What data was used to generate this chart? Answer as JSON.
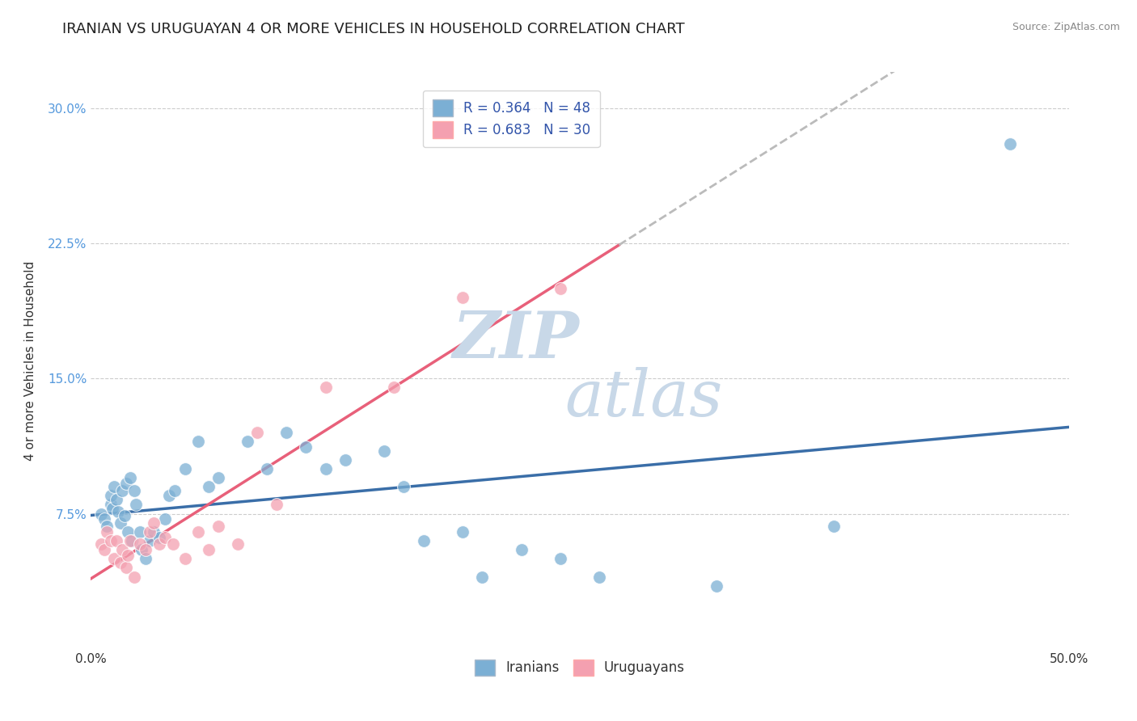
{
  "title": "IRANIAN VS URUGUAYAN 4 OR MORE VEHICLES IN HOUSEHOLD CORRELATION CHART",
  "source_text": "Source: ZipAtlas.com",
  "ylabel": "4 or more Vehicles in Household",
  "xlim": [
    0.0,
    0.5
  ],
  "ylim": [
    0.0,
    0.32
  ],
  "xtick_positions": [
    0.0,
    0.5
  ],
  "xtick_labels": [
    "0.0%",
    "50.0%"
  ],
  "ytick_positions": [
    0.075,
    0.15,
    0.225,
    0.3
  ],
  "ytick_labels": [
    "7.5%",
    "15.0%",
    "22.5%",
    "30.0%"
  ],
  "r_iranian": 0.364,
  "n_iranian": 48,
  "r_uruguayan": 0.683,
  "n_uruguayan": 30,
  "color_iranian": "#7BAFD4",
  "color_uruguayan": "#F4A0B0",
  "trendline_color_iranian": "#3A6EA8",
  "trendline_color_uruguayan": "#E8607A",
  "trendline_dashed_color": "#BBBBBB",
  "background_color": "#FFFFFF",
  "watermark_color": "#C8D8E8",
  "title_fontsize": 13,
  "axis_label_fontsize": 11,
  "tick_fontsize": 11,
  "legend_fontsize": 12,
  "iranian_x": [
    0.005,
    0.007,
    0.008,
    0.01,
    0.01,
    0.011,
    0.012,
    0.013,
    0.014,
    0.015,
    0.016,
    0.017,
    0.018,
    0.019,
    0.02,
    0.021,
    0.022,
    0.023,
    0.025,
    0.026,
    0.028,
    0.03,
    0.032,
    0.035,
    0.038,
    0.04,
    0.043,
    0.048,
    0.055,
    0.06,
    0.065,
    0.08,
    0.09,
    0.1,
    0.11,
    0.12,
    0.13,
    0.15,
    0.16,
    0.17,
    0.19,
    0.2,
    0.22,
    0.24,
    0.26,
    0.32,
    0.38,
    0.47
  ],
  "iranian_y": [
    0.075,
    0.072,
    0.068,
    0.08,
    0.085,
    0.078,
    0.09,
    0.083,
    0.076,
    0.07,
    0.088,
    0.074,
    0.092,
    0.065,
    0.095,
    0.06,
    0.088,
    0.08,
    0.065,
    0.055,
    0.05,
    0.06,
    0.065,
    0.062,
    0.072,
    0.085,
    0.088,
    0.1,
    0.115,
    0.09,
    0.095,
    0.115,
    0.1,
    0.12,
    0.112,
    0.1,
    0.105,
    0.11,
    0.09,
    0.06,
    0.065,
    0.04,
    0.055,
    0.05,
    0.04,
    0.035,
    0.068,
    0.28
  ],
  "uruguayan_x": [
    0.005,
    0.007,
    0.008,
    0.01,
    0.012,
    0.013,
    0.015,
    0.016,
    0.018,
    0.019,
    0.02,
    0.022,
    0.025,
    0.028,
    0.03,
    0.032,
    0.035,
    0.038,
    0.042,
    0.048,
    0.055,
    0.06,
    0.065,
    0.075,
    0.085,
    0.095,
    0.12,
    0.155,
    0.19,
    0.24
  ],
  "uruguayan_y": [
    0.058,
    0.055,
    0.065,
    0.06,
    0.05,
    0.06,
    0.048,
    0.055,
    0.045,
    0.052,
    0.06,
    0.04,
    0.058,
    0.055,
    0.065,
    0.07,
    0.058,
    0.062,
    0.058,
    0.05,
    0.065,
    0.055,
    0.068,
    0.058,
    0.12,
    0.08,
    0.145,
    0.145,
    0.195,
    0.2
  ]
}
